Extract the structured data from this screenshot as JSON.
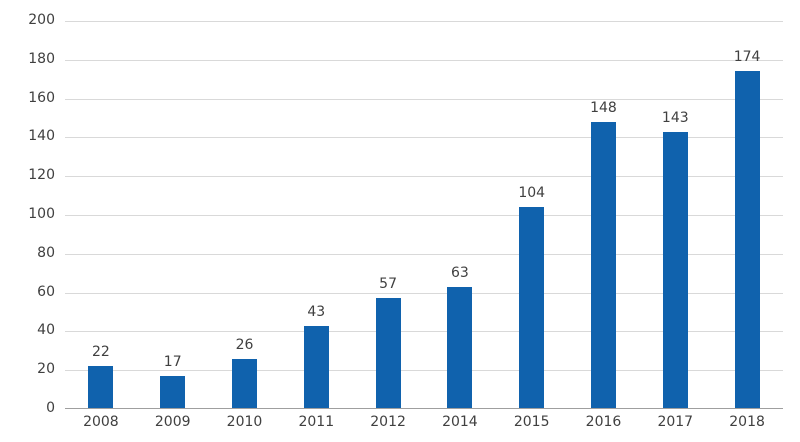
{
  "chart_data": {
    "type": "bar",
    "title": "",
    "xlabel": "",
    "ylabel": "",
    "categories": [
      "2008",
      "2009",
      "2010",
      "2011",
      "2012",
      "2014",
      "2015",
      "2016",
      "2017",
      "2018"
    ],
    "values": [
      22,
      17,
      26,
      43,
      57,
      63,
      104,
      148,
      143,
      174
    ],
    "ylim": [
      0,
      200
    ],
    "yticks": [
      0,
      20,
      40,
      60,
      80,
      100,
      120,
      140,
      160,
      180,
      200
    ],
    "grid": true,
    "legend": false,
    "colors": {
      "bar": "#1062AD",
      "gridline": "#d9d9d9",
      "axis_line": "#9f9f9f",
      "label": "#404040",
      "background": "#ffffff"
    }
  }
}
